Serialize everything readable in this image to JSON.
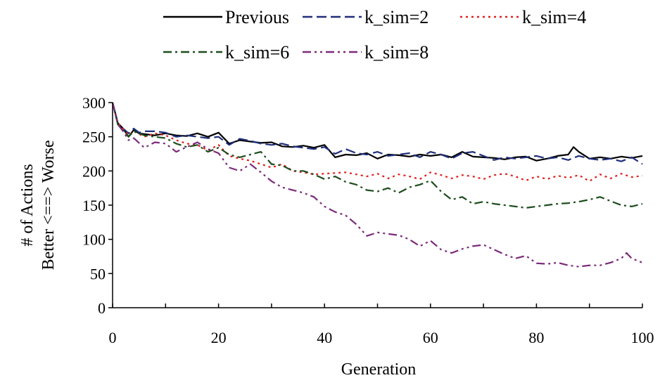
{
  "chart_data": {
    "type": "line",
    "title": "",
    "xlabel": "Generation",
    "ylabel_line1": "# of Actions",
    "ylabel_line2": "Better <==> Worse",
    "xlim": [
      0,
      100
    ],
    "ylim": [
      0,
      300
    ],
    "xticks": [
      0,
      20,
      40,
      60,
      80,
      100
    ],
    "xtick_labels": [
      "0",
      "20",
      "40",
      "60",
      "80",
      "100"
    ],
    "yticks": [
      0,
      50,
      100,
      150,
      200,
      250,
      300
    ],
    "ytick_labels": [
      "0",
      "50",
      "100",
      "150",
      "200",
      "250",
      "300"
    ],
    "grid": false,
    "legend_position": "top",
    "series": [
      {
        "name": "Previous",
        "color": "#000000",
        "style": "solid",
        "x": [
          0,
          1,
          2,
          3,
          4,
          5,
          6,
          8,
          10,
          12,
          14,
          16,
          18,
          20,
          22,
          24,
          26,
          28,
          30,
          32,
          34,
          36,
          38,
          40,
          42,
          44,
          46,
          48,
          50,
          52,
          54,
          56,
          58,
          60,
          62,
          64,
          66,
          68,
          70,
          72,
          74,
          76,
          78,
          80,
          82,
          84,
          86,
          87,
          88,
          90,
          92,
          94,
          96,
          98,
          100
        ],
        "y": [
          300,
          270,
          262,
          250,
          260,
          255,
          254,
          252,
          255,
          252,
          251,
          255,
          250,
          256,
          240,
          245,
          243,
          241,
          242,
          236,
          235,
          237,
          234,
          238,
          220,
          224,
          223,
          226,
          218,
          224,
          223,
          221,
          224,
          222,
          224,
          220,
          228,
          221,
          220,
          219,
          217,
          220,
          221,
          215,
          218,
          222,
          224,
          235,
          228,
          218,
          220,
          218,
          221,
          219,
          222
        ]
      },
      {
        "name": "k_sim=2",
        "color": "#1f2f7a",
        "style": "dash",
        "x": [
          0,
          1,
          2,
          3,
          4,
          5,
          6,
          8,
          10,
          12,
          14,
          16,
          18,
          20,
          22,
          24,
          26,
          28,
          30,
          32,
          34,
          36,
          38,
          40,
          42,
          44,
          46,
          48,
          50,
          52,
          54,
          56,
          58,
          60,
          62,
          64,
          66,
          68,
          70,
          72,
          74,
          76,
          78,
          80,
          82,
          84,
          86,
          88,
          90,
          92,
          94,
          96,
          98,
          100
        ],
        "y": [
          300,
          268,
          262,
          255,
          262,
          256,
          258,
          258,
          256,
          250,
          252,
          250,
          248,
          250,
          238,
          247,
          244,
          240,
          238,
          240,
          236,
          234,
          232,
          235,
          225,
          232,
          226,
          224,
          228,
          222,
          224,
          226,
          220,
          228,
          224,
          218,
          226,
          228,
          222,
          216,
          220,
          218,
          220,
          222,
          218,
          220,
          216,
          222,
          218,
          216,
          218,
          214,
          220,
          210
        ]
      },
      {
        "name": "k_sim=4",
        "color": "#e0201c",
        "style": "dot",
        "x": [
          0,
          1,
          2,
          3,
          4,
          6,
          8,
          10,
          12,
          14,
          16,
          18,
          20,
          22,
          24,
          26,
          28,
          30,
          32,
          34,
          36,
          38,
          40,
          42,
          44,
          46,
          48,
          50,
          52,
          54,
          56,
          58,
          60,
          62,
          64,
          66,
          68,
          70,
          72,
          74,
          76,
          78,
          80,
          82,
          84,
          86,
          88,
          90,
          92,
          94,
          96,
          98,
          100
        ],
        "y": [
          300,
          270,
          262,
          252,
          258,
          250,
          255,
          252,
          245,
          240,
          238,
          230,
          238,
          222,
          218,
          215,
          210,
          205,
          210,
          200,
          198,
          195,
          196,
          197,
          198,
          195,
          192,
          196,
          189,
          195,
          192,
          188,
          198,
          194,
          189,
          194,
          192,
          188,
          194,
          196,
          192,
          186,
          192,
          188,
          193,
          190,
          194,
          185,
          195,
          189,
          196,
          191,
          193
        ]
      },
      {
        "name": "k_sim=6",
        "color": "#1d4d1d",
        "style": "dashdot",
        "x": [
          0,
          1,
          2,
          3,
          4,
          6,
          8,
          10,
          12,
          14,
          16,
          18,
          20,
          22,
          24,
          26,
          28,
          30,
          32,
          34,
          36,
          38,
          40,
          42,
          44,
          46,
          48,
          50,
          52,
          54,
          56,
          58,
          60,
          62,
          64,
          66,
          68,
          70,
          72,
          74,
          76,
          78,
          80,
          82,
          84,
          86,
          88,
          90,
          92,
          94,
          96,
          98,
          100
        ],
        "y": [
          300,
          268,
          260,
          250,
          258,
          252,
          250,
          248,
          240,
          235,
          238,
          228,
          234,
          224,
          220,
          224,
          228,
          210,
          208,
          200,
          200,
          195,
          188,
          192,
          184,
          180,
          172,
          170,
          175,
          168,
          176,
          180,
          186,
          170,
          158,
          162,
          152,
          155,
          152,
          150,
          148,
          146,
          148,
          150,
          152,
          153,
          155,
          158,
          162,
          156,
          150,
          148,
          152
        ]
      },
      {
        "name": "k_sim=8",
        "color": "#7b2a7a",
        "style": "dashdotdot",
        "x": [
          0,
          1,
          2,
          3,
          4,
          6,
          8,
          10,
          12,
          14,
          16,
          18,
          20,
          22,
          24,
          26,
          28,
          30,
          32,
          34,
          36,
          38,
          40,
          42,
          44,
          46,
          48,
          50,
          52,
          54,
          56,
          58,
          60,
          62,
          64,
          66,
          68,
          70,
          72,
          74,
          76,
          78,
          80,
          82,
          84,
          86,
          88,
          90,
          92,
          94,
          96,
          97,
          98,
          100
        ],
        "y": [
          300,
          268,
          258,
          245,
          248,
          234,
          242,
          240,
          228,
          235,
          242,
          232,
          226,
          205,
          200,
          210,
          198,
          185,
          176,
          172,
          168,
          162,
          148,
          140,
          135,
          122,
          105,
          110,
          108,
          106,
          100,
          90,
          98,
          85,
          80,
          86,
          90,
          92,
          85,
          78,
          72,
          76,
          65,
          64,
          66,
          62,
          60,
          62,
          62,
          66,
          72,
          80,
          72,
          66
        ]
      }
    ]
  }
}
